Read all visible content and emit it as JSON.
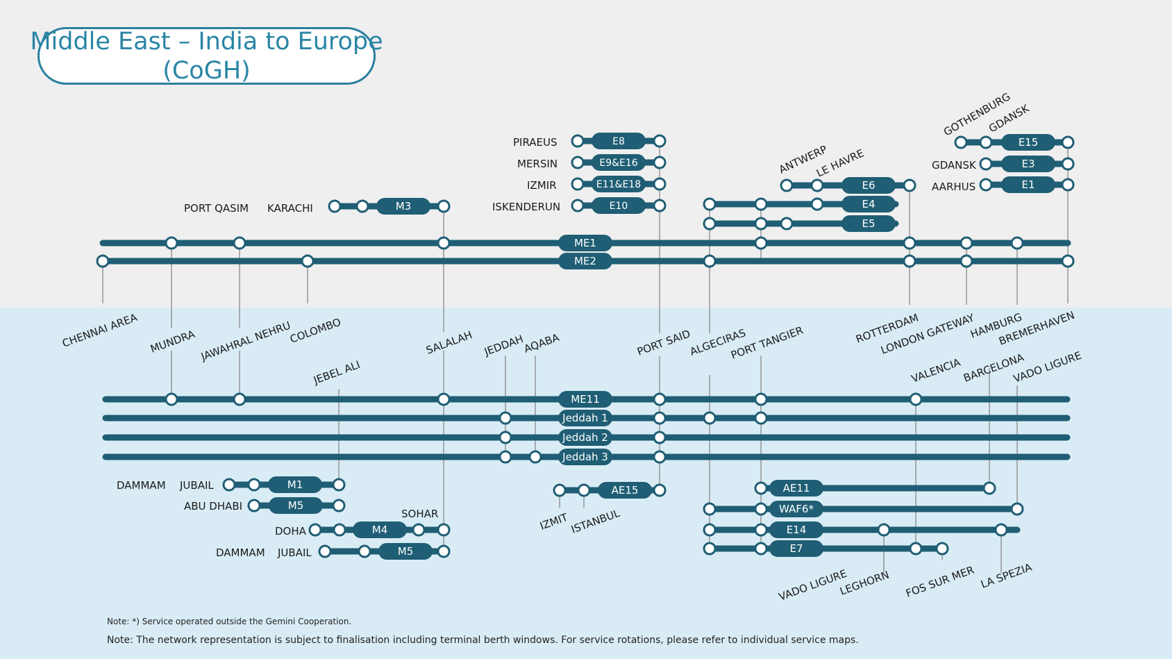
{
  "title": {
    "line1": "Middle East – India to Europe",
    "line2": "(CoGH)"
  },
  "colors": {
    "line": "#1f5e74",
    "top_bg": "#efefef",
    "bottom_bg": "#d9ecf5",
    "title": "#2a85a5",
    "text": "#1a1a1a"
  },
  "services": [
    "M3",
    "ME1",
    "ME2",
    "E8",
    "E9&E16",
    "E11&E18",
    "E10",
    "E6",
    "E4",
    "E5",
    "E15",
    "E3",
    "E1",
    "ME11",
    "Jeddah 1",
    "Jeddah 2",
    "Jeddah 3",
    "M1",
    "M5",
    "M4",
    "M5",
    "AE15",
    "AE11",
    "WAF6*",
    "E14",
    "E7"
  ],
  "ports": {
    "chennai": "CHENNAI AREA",
    "mundra": "MUNDRA",
    "nhava": "JAWAHRAL NEHRU",
    "colombo": "COLOMBO",
    "port_qasim": "PORT QASIM",
    "karachi": "KARACHI",
    "jebel_ali": "JEBEL ALI",
    "salalah": "SALALAH",
    "jeddah": "JEDDAH",
    "aqaba": "AQABA",
    "piraeus": "PIRAEUS",
    "mersin": "MERSIN",
    "izmir": "IZMIR",
    "iskenderun": "ISKENDERUN",
    "port_said": "PORT SAID",
    "algeciras": "ALGECIRAS",
    "port_tangier": "PORT TANGIER",
    "antwerp": "ANTWERP",
    "le_havre": "LE HAVRE",
    "gothenburg": "GOTHENBURG",
    "gdansk_top": "GDANSK",
    "gdansk": "GDANSK",
    "aarhus": "AARHUS",
    "rotterdam": "ROTTERDAM",
    "london_gateway": "LONDON GATEWAY",
    "hamburg": "HAMBURG",
    "bremerhaven": "BREMERHAVEN",
    "valencia": "VALENCIA",
    "barcelona": "BARCELONA",
    "vado_ligure_top": "VADO LIGURE",
    "dammam_1": "DAMMAM",
    "jubail_1": "JUBAIL",
    "abu_dhabi": "ABU DHABI",
    "sohar": "SOHAR",
    "doha": "DOHA",
    "dammam_2": "DAMMAM",
    "jubail_2": "JUBAIL",
    "izmit": "IZMIT",
    "istanbul": "ISTANBUL",
    "vado_ligure_bottom": "VADO LIGURE",
    "leghorn": "LEGHORN",
    "fos_sur_mer": "FOS SUR MER",
    "la_spezia": "LA SPEZIA"
  },
  "notes": {
    "gemini": "Note: *) Service operated outside the Gemini Cooperation.",
    "network": "Note: The network representation is subject to finalisation including terminal berth windows. For service rotations, please refer to individual service maps."
  }
}
